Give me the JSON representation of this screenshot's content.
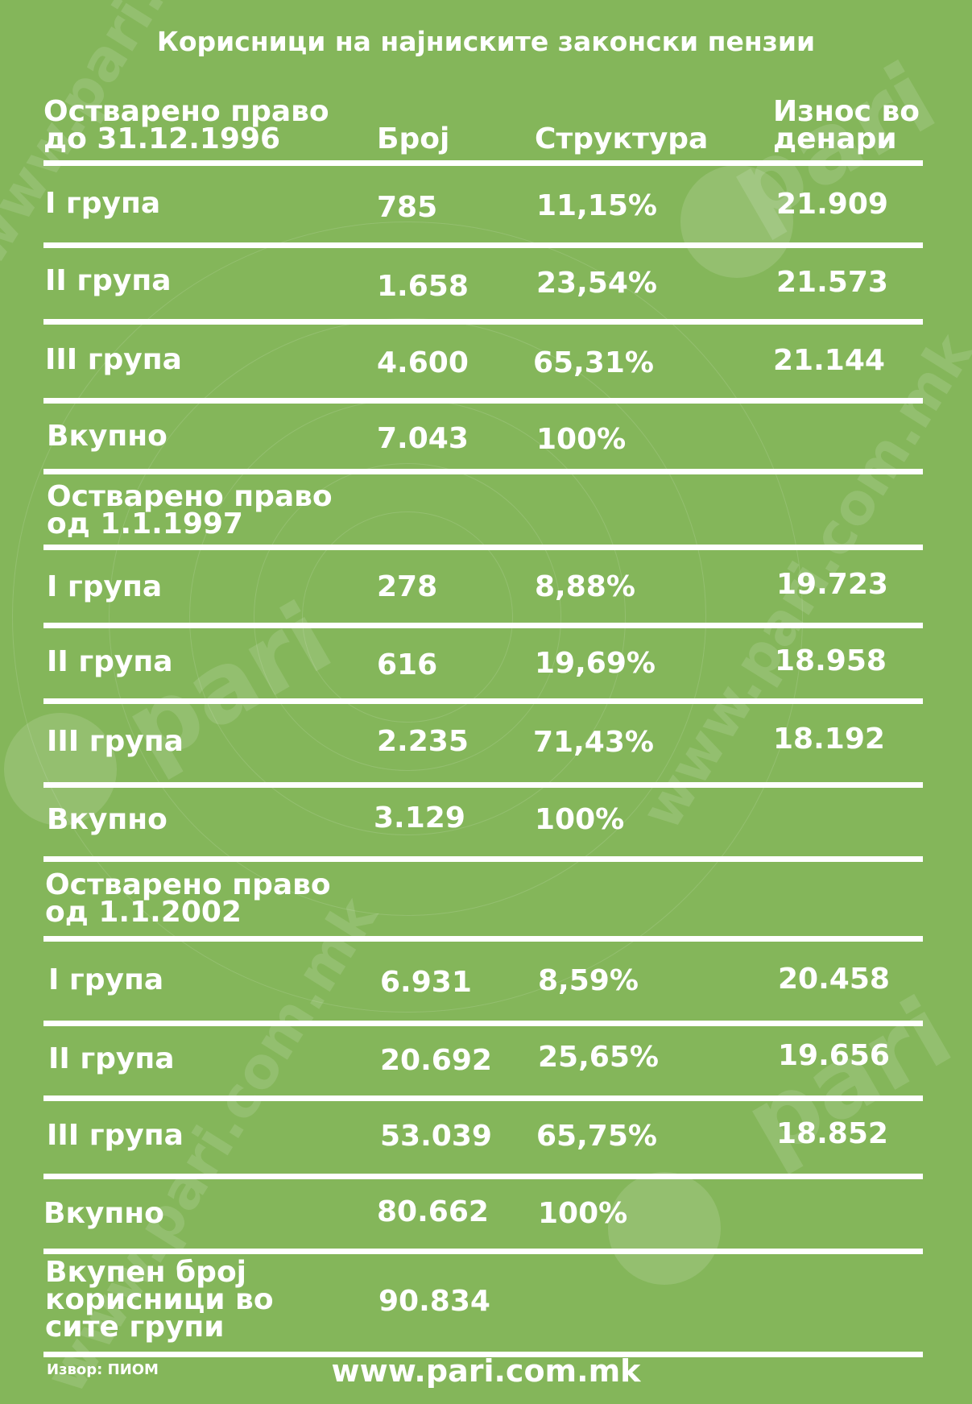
{
  "title": "Корисници на најниските законски пензии",
  "headers": {
    "col1_line1": "Остварено право",
    "col1_line2": "до 31.12.1996",
    "col2": "Број",
    "col3": "Структура",
    "col4_line1": "Износ во",
    "col4_line2": "денари"
  },
  "section1": {
    "rows": [
      {
        "group": "I група",
        "count": "785",
        "structure": "11,15%",
        "amount": "21.909"
      },
      {
        "group": "II група",
        "count": "1.658",
        "structure": "23,54%",
        "amount": "21.573"
      },
      {
        "group": "III група",
        "count": "4.600",
        "structure": "65,31%",
        "amount": "21.144"
      },
      {
        "group": "Вкупно",
        "count": "7.043",
        "structure": "100%",
        "amount": ""
      }
    ]
  },
  "section2": {
    "title_line1": "Остварено право",
    "title_line2": "од 1.1.1997",
    "rows": [
      {
        "group": "I група",
        "count": "278",
        "structure": "8,88%",
        "amount": "19.723"
      },
      {
        "group": "II група",
        "count": "616",
        "structure": "19,69%",
        "amount": "18.958"
      },
      {
        "group": "III група",
        "count": "2.235",
        "structure": "71,43%",
        "amount": "18.192"
      },
      {
        "group": "Вкупно",
        "count": "3.129",
        "structure": "100%",
        "amount": ""
      }
    ]
  },
  "section3": {
    "title_line1": "Остварено право",
    "title_line2": "од 1.1.2002",
    "rows": [
      {
        "group": "I група",
        "count": "6.931",
        "structure": "8,59%",
        "amount": "20.458"
      },
      {
        "group": "II група",
        "count": "20.692",
        "structure": "25,65%",
        "amount": "19.656"
      },
      {
        "group": "III група",
        "count": "53.039",
        "structure": "65,75%",
        "amount": "18.852"
      },
      {
        "group": "Вкупно",
        "count": "80.662",
        "structure": "100%",
        "amount": ""
      }
    ]
  },
  "total": {
    "line1": "Вкупен број",
    "line2": "корисници во",
    "line3": "сите групи",
    "count": "90.834"
  },
  "source": "Извор: ПИОМ",
  "website": "www.pari.com.mk",
  "watermark": {
    "brand": "pari",
    "domain": "com.mk",
    "url": "www.pari.com.mk"
  },
  "colors": {
    "background": "#84b65a",
    "text": "#ffffff"
  }
}
